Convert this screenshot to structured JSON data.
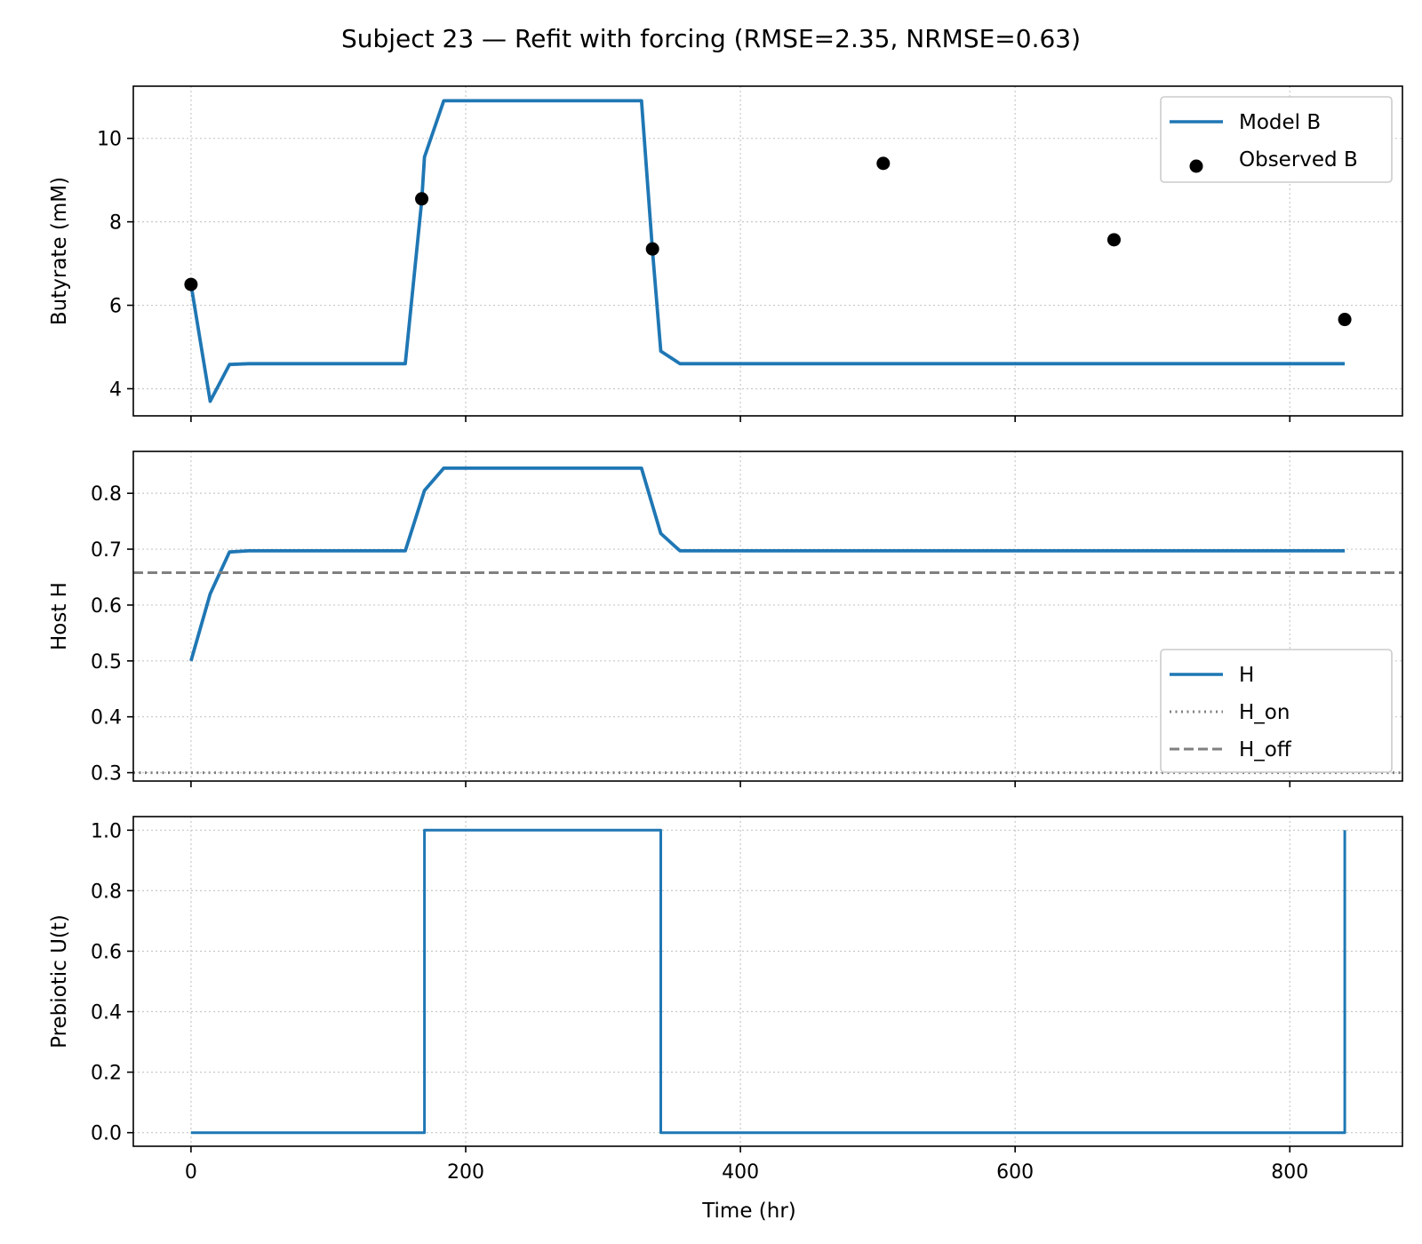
{
  "title": "Subject 23 — Refit with forcing (RMSE=2.35, NRMSE=0.63)",
  "xlabel": "Time (hr)",
  "xticks": [
    0,
    200,
    400,
    600,
    800
  ],
  "colors": {
    "model": "#1f77b4",
    "observed": "#000000",
    "threshold": "#808080"
  },
  "chart_data": [
    {
      "type": "line",
      "ylabel": "Butyrate (mM)",
      "xlim": [
        -42,
        882
      ],
      "ylim": [
        3.35,
        11.25
      ],
      "yticks": [
        4,
        6,
        8,
        10
      ],
      "grid": true,
      "legend_position": "top-right",
      "series": [
        {
          "name": "Model B",
          "kind": "line",
          "x": [
            0,
            14,
            28,
            42,
            56,
            70,
            84,
            98,
            112,
            126,
            140,
            156,
            168,
            170,
            184,
            196,
            210,
            224,
            238,
            252,
            266,
            280,
            294,
            308,
            328,
            336,
            342,
            356,
            370,
            400,
            500,
            600,
            700,
            800,
            840
          ],
          "y": [
            6.5,
            3.7,
            4.58,
            4.6,
            4.6,
            4.6,
            4.6,
            4.6,
            4.6,
            4.6,
            4.6,
            4.6,
            8.5,
            9.55,
            10.9,
            10.9,
            10.9,
            10.9,
            10.9,
            10.9,
            10.9,
            10.9,
            10.9,
            10.9,
            10.9,
            7.3,
            4.9,
            4.6,
            4.6,
            4.6,
            4.6,
            4.6,
            4.6,
            4.6,
            4.6
          ]
        },
        {
          "name": "Observed B",
          "kind": "scatter",
          "x": [
            0,
            168,
            336,
            504,
            672,
            840
          ],
          "y": [
            6.5,
            8.55,
            7.35,
            9.4,
            7.57,
            5.66
          ]
        }
      ]
    },
    {
      "type": "line",
      "ylabel": "Host H",
      "xlim": [
        -42,
        882
      ],
      "ylim": [
        0.285,
        0.875
      ],
      "yticks": [
        0.3,
        0.4,
        0.5,
        0.6,
        0.7,
        0.8
      ],
      "grid": true,
      "legend_position": "bottom-right",
      "series": [
        {
          "name": "H",
          "kind": "line",
          "x": [
            0,
            14,
            28,
            42,
            56,
            70,
            84,
            98,
            112,
            126,
            140,
            156,
            170,
            184,
            196,
            210,
            224,
            238,
            252,
            266,
            280,
            294,
            308,
            328,
            342,
            356,
            370,
            400,
            500,
            600,
            700,
            800,
            840
          ],
          "y": [
            0.5,
            0.62,
            0.695,
            0.697,
            0.697,
            0.697,
            0.697,
            0.697,
            0.697,
            0.697,
            0.697,
            0.697,
            0.805,
            0.845,
            0.845,
            0.845,
            0.845,
            0.845,
            0.845,
            0.845,
            0.845,
            0.845,
            0.845,
            0.845,
            0.728,
            0.697,
            0.697,
            0.697,
            0.697,
            0.697,
            0.697,
            0.697,
            0.697
          ]
        },
        {
          "name": "H_on",
          "kind": "hline",
          "y": 0.3,
          "style": "dotted"
        },
        {
          "name": "H_off",
          "kind": "hline",
          "y": 0.658,
          "style": "dashed"
        }
      ]
    },
    {
      "type": "line",
      "ylabel": "Prebiotic U(t)",
      "xlim": [
        -42,
        882
      ],
      "ylim": [
        -0.045,
        1.045
      ],
      "yticks": [
        "0.0",
        "0.2",
        "0.4",
        "0.6",
        "0.8",
        "1.0"
      ],
      "grid": true,
      "series": [
        {
          "name": "",
          "kind": "line",
          "x": [
            0,
            170,
            170,
            342,
            342,
            840,
            840
          ],
          "y": [
            0,
            0,
            1,
            1,
            0,
            0,
            1
          ]
        }
      ]
    }
  ]
}
